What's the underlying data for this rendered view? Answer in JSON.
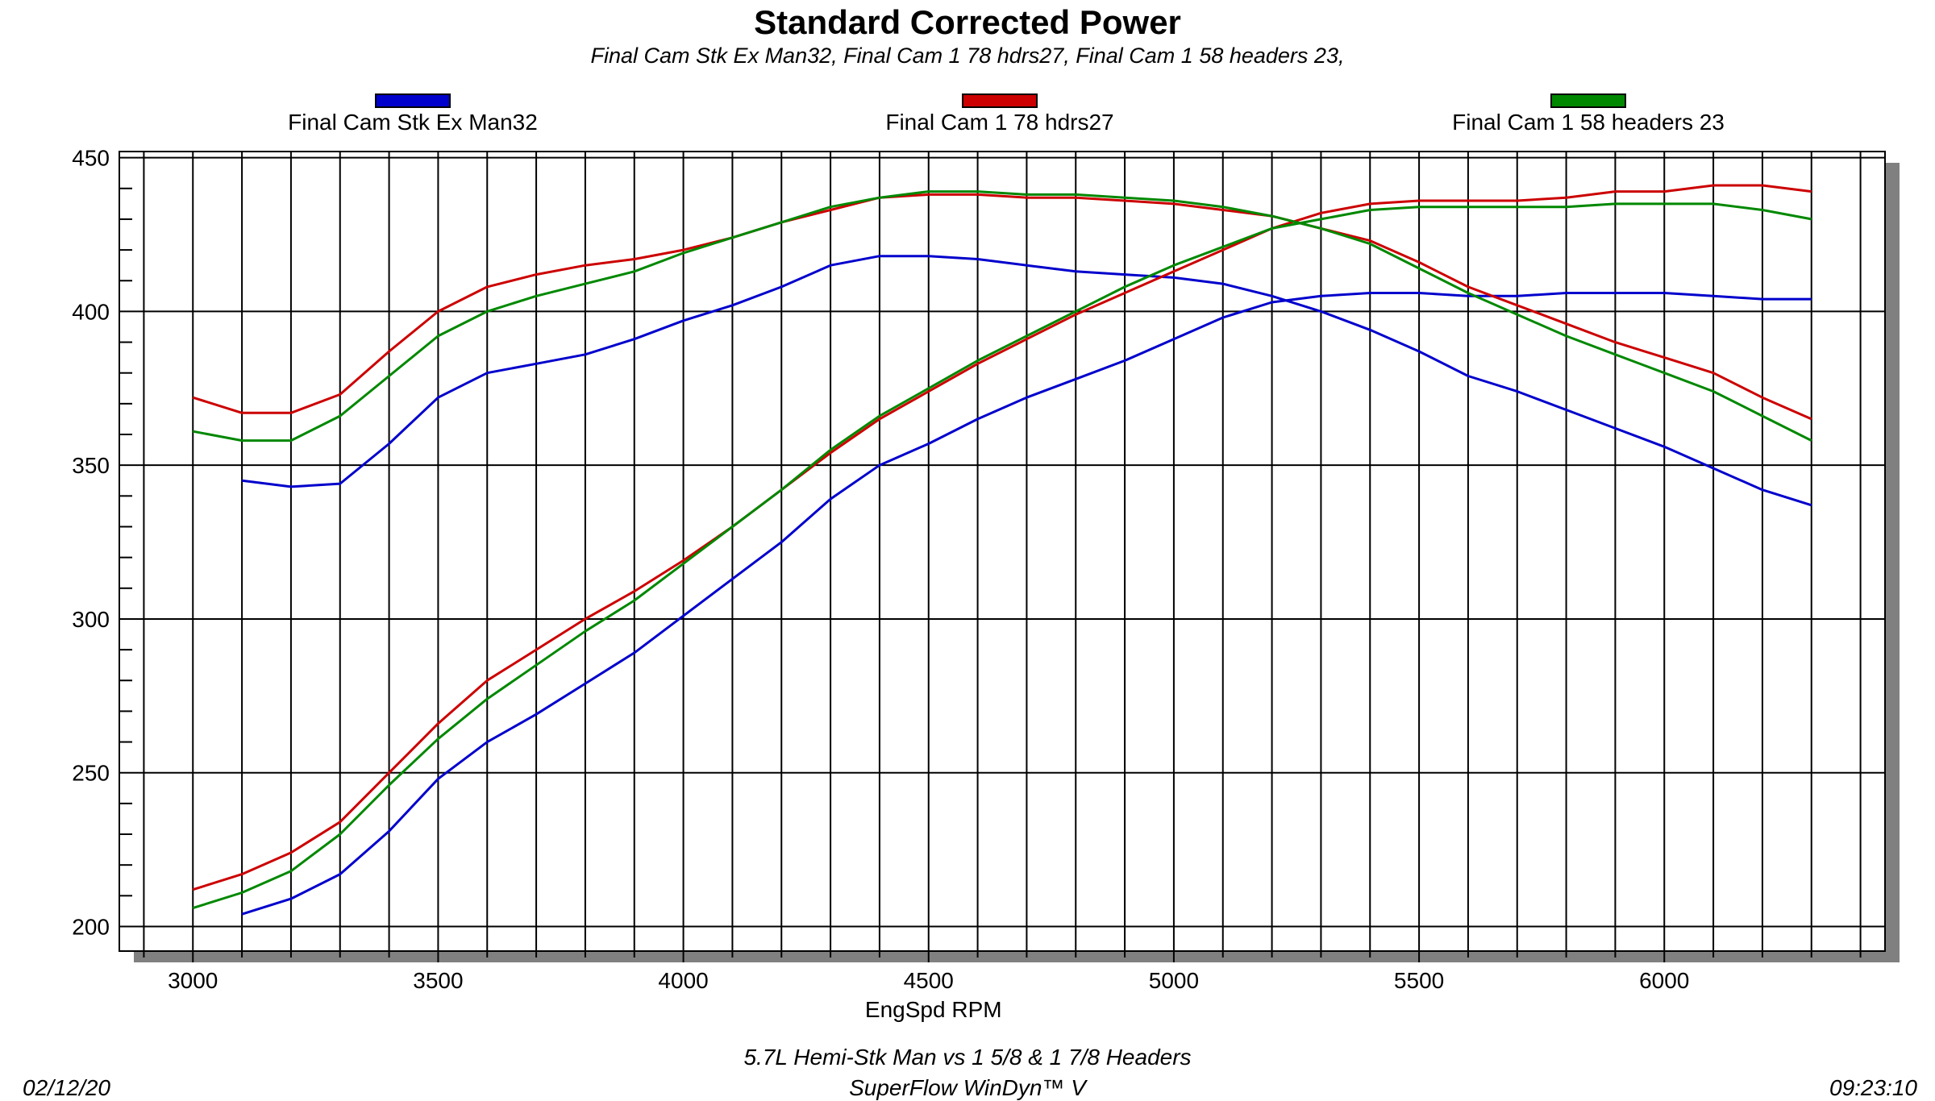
{
  "chart_data": {
    "type": "line",
    "title": "Standard Corrected Power",
    "subtitle": "Final Cam Stk Ex Man32,  Final Cam 1 78 hdrs27,  Final Cam 1 58 headers 23,",
    "xlabel": "EngSpd RPM",
    "ylabel": "",
    "xlim": [
      2850,
      6450
    ],
    "ylim": [
      192,
      452
    ],
    "x_ticks": [
      3000,
      3500,
      4000,
      4500,
      5000,
      5500,
      6000
    ],
    "y_ticks": [
      200,
      250,
      300,
      350,
      400,
      450
    ],
    "grid": true,
    "legend_position": "top",
    "footer": {
      "line1": "5.7L Hemi-Stk Man vs 1 5/8 & 1 7/8 Headers",
      "line2": "SuperFlow WinDyn™ V",
      "date": "02/12/20",
      "time": "09:23:10"
    },
    "series": [
      {
        "name": "Final Cam Stk Ex Man32",
        "color": "#0000cc",
        "torque": {
          "x": [
            3100,
            3200,
            3300,
            3400,
            3500,
            3600,
            3700,
            3800,
            3900,
            4000,
            4100,
            4200,
            4300,
            4400,
            4500,
            4600,
            4700,
            4800,
            4900,
            5000,
            5100,
            5200,
            5300,
            5400,
            5500,
            5600,
            5700,
            5800,
            5900,
            6000,
            6100,
            6200,
            6300
          ],
          "y": [
            345,
            343,
            344,
            357,
            372,
            380,
            383,
            386,
            391,
            397,
            402,
            408,
            415,
            418,
            418,
            417,
            415,
            413,
            412,
            411,
            409,
            405,
            400,
            394,
            387,
            379,
            374,
            368,
            362,
            356,
            349,
            342,
            337
          ]
        },
        "power": {
          "x": [
            3100,
            3200,
            3300,
            3400,
            3500,
            3600,
            3700,
            3800,
            3900,
            4000,
            4100,
            4200,
            4300,
            4400,
            4500,
            4600,
            4700,
            4800,
            4900,
            5000,
            5100,
            5200,
            5300,
            5400,
            5500,
            5600,
            5700,
            5800,
            5900,
            6000,
            6100,
            6200,
            6300
          ],
          "y": [
            204,
            209,
            217,
            231,
            248,
            260,
            269,
            279,
            289,
            301,
            313,
            325,
            339,
            350,
            357,
            365,
            372,
            378,
            384,
            391,
            398,
            403,
            405,
            406,
            406,
            405,
            405,
            406,
            406,
            406,
            405,
            404,
            404
          ]
        }
      },
      {
        "name": "Final Cam 1 78 hdrs27",
        "color": "#cc0000",
        "torque": {
          "x": [
            3000,
            3100,
            3200,
            3300,
            3400,
            3500,
            3600,
            3700,
            3800,
            3900,
            4000,
            4100,
            4200,
            4300,
            4400,
            4500,
            4600,
            4700,
            4800,
            4900,
            5000,
            5100,
            5200,
            5300,
            5400,
            5500,
            5600,
            5700,
            5800,
            5900,
            6000,
            6100,
            6200,
            6300
          ],
          "y": [
            372,
            367,
            367,
            373,
            387,
            400,
            408,
            412,
            415,
            417,
            420,
            424,
            429,
            433,
            437,
            438,
            438,
            437,
            437,
            436,
            435,
            433,
            431,
            427,
            423,
            416,
            408,
            402,
            396,
            390,
            385,
            380,
            372,
            365
          ]
        },
        "power": {
          "x": [
            3000,
            3100,
            3200,
            3300,
            3400,
            3500,
            3600,
            3700,
            3800,
            3900,
            4000,
            4100,
            4200,
            4300,
            4400,
            4500,
            4600,
            4700,
            4800,
            4900,
            5000,
            5100,
            5200,
            5300,
            5400,
            5500,
            5600,
            5700,
            5800,
            5900,
            6000,
            6100,
            6200,
            6300
          ],
          "y": [
            212,
            217,
            224,
            234,
            250,
            266,
            280,
            290,
            300,
            309,
            319,
            330,
            342,
            354,
            365,
            374,
            383,
            391,
            399,
            406,
            413,
            420,
            427,
            432,
            435,
            436,
            436,
            436,
            437,
            439,
            439,
            441,
            441,
            439
          ]
        }
      },
      {
        "name": "Final Cam 1 58 headers 23",
        "color": "#008800",
        "torque": {
          "x": [
            3000,
            3100,
            3200,
            3300,
            3400,
            3500,
            3600,
            3700,
            3800,
            3900,
            4000,
            4100,
            4200,
            4300,
            4400,
            4500,
            4600,
            4700,
            4800,
            4900,
            5000,
            5100,
            5200,
            5300,
            5400,
            5500,
            5600,
            5700,
            5800,
            5900,
            6000,
            6100,
            6200,
            6300
          ],
          "y": [
            361,
            358,
            358,
            366,
            379,
            392,
            400,
            405,
            409,
            413,
            419,
            424,
            429,
            434,
            437,
            439,
            439,
            438,
            438,
            437,
            436,
            434,
            431,
            427,
            422,
            414,
            406,
            399,
            392,
            386,
            380,
            374,
            366,
            358
          ]
        },
        "power": {
          "x": [
            3000,
            3100,
            3200,
            3300,
            3400,
            3500,
            3600,
            3700,
            3800,
            3900,
            4000,
            4100,
            4200,
            4300,
            4400,
            4500,
            4600,
            4700,
            4800,
            4900,
            5000,
            5100,
            5200,
            5300,
            5400,
            5500,
            5600,
            5700,
            5800,
            5900,
            6000,
            6100,
            6200,
            6300
          ],
          "y": [
            206,
            211,
            218,
            230,
            246,
            261,
            274,
            285,
            296,
            306,
            318,
            330,
            342,
            355,
            366,
            375,
            384,
            392,
            400,
            408,
            415,
            421,
            427,
            430,
            433,
            434,
            434,
            434,
            434,
            435,
            435,
            435,
            433,
            430
          ]
        }
      }
    ]
  }
}
